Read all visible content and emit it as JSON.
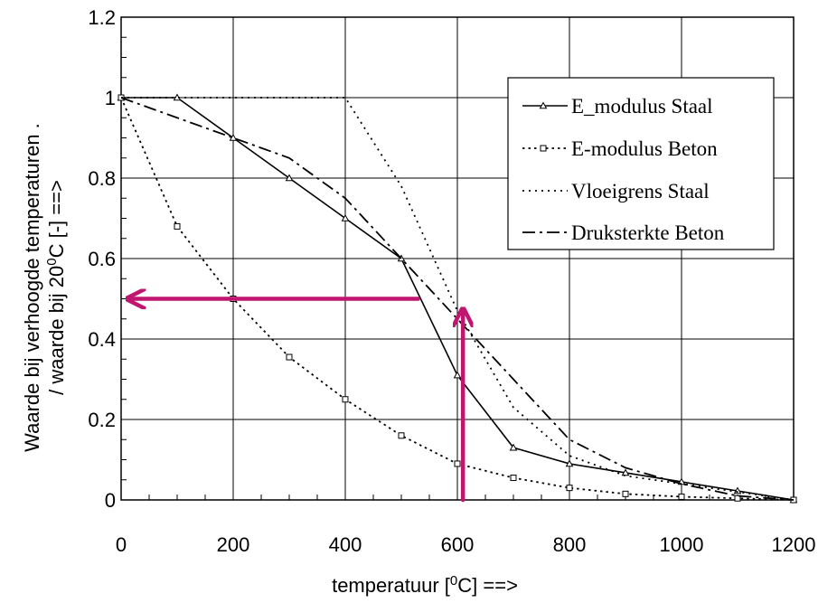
{
  "chart_data": {
    "type": "line",
    "xlabel": "temperatuur [",
    "xlabel_sup": "0",
    "xlabel_suffix": "C] ==>",
    "ylabel_line1": "Waarde bij verhoogde temperaturen  .",
    "ylabel_line2_prefix": "/ waarde bij 20",
    "ylabel_line2_sup": "0",
    "ylabel_line2_suffix": "C [-] ==>",
    "xlim": [
      0,
      1200
    ],
    "ylim": [
      0,
      1.2
    ],
    "xticks": [
      0,
      200,
      400,
      600,
      800,
      1000,
      1200
    ],
    "yticks": [
      0,
      0.2,
      0.4,
      0.6,
      0.8,
      1,
      1.2
    ],
    "xtick_labels": [
      "0",
      "200",
      "400",
      "600",
      "800",
      "1000",
      "1200"
    ],
    "ytick_labels": [
      "0",
      "0.2",
      "0.4",
      "0.6",
      "0.8",
      "1",
      "1.2"
    ],
    "grid": true,
    "legend_position": "top-right",
    "series": [
      {
        "name": "E_modulus Staal",
        "style": "solid",
        "marker": "triangle",
        "x": [
          0,
          100,
          200,
          300,
          400,
          500,
          600,
          700,
          800,
          900,
          1000,
          1100,
          1200
        ],
        "y": [
          1.0,
          1.0,
          0.9,
          0.8,
          0.7,
          0.6,
          0.31,
          0.13,
          0.09,
          0.0675,
          0.045,
          0.0225,
          0.0
        ]
      },
      {
        "name": "E-modulus Beton",
        "style": "dotted",
        "marker": "square",
        "x": [
          0,
          100,
          200,
          300,
          400,
          500,
          600,
          700,
          800,
          900,
          1000,
          1100,
          1200
        ],
        "y": [
          1.0,
          0.68,
          0.5,
          0.355,
          0.25,
          0.16,
          0.09,
          0.055,
          0.03,
          0.015,
          0.008,
          0.004,
          0.0
        ]
      },
      {
        "name": "Vloeigrens Staal",
        "style": "dotted-fine",
        "marker": "none",
        "x": [
          0,
          100,
          200,
          300,
          400,
          500,
          600,
          700,
          800,
          900,
          1000,
          1100,
          1200
        ],
        "y": [
          1.0,
          1.0,
          1.0,
          1.0,
          1.0,
          0.78,
          0.47,
          0.23,
          0.11,
          0.06,
          0.04,
          0.02,
          0.0
        ]
      },
      {
        "name": "Druksterkte Beton",
        "style": "dashdot",
        "marker": "none",
        "x": [
          0,
          100,
          200,
          300,
          400,
          500,
          600,
          700,
          800,
          900,
          1000,
          1100,
          1200
        ],
        "y": [
          1.0,
          0.95,
          0.9,
          0.85,
          0.75,
          0.6,
          0.45,
          0.3,
          0.15,
          0.08,
          0.04,
          0.01,
          0.0
        ]
      }
    ],
    "annotations": [
      {
        "type": "arrow",
        "color": "#c0166f",
        "from": [
          610,
          0
        ],
        "to": [
          610,
          0.47
        ]
      },
      {
        "type": "arrow",
        "color": "#c0166f",
        "from": [
          530,
          0.5
        ],
        "to": [
          15,
          0.5
        ]
      }
    ]
  }
}
